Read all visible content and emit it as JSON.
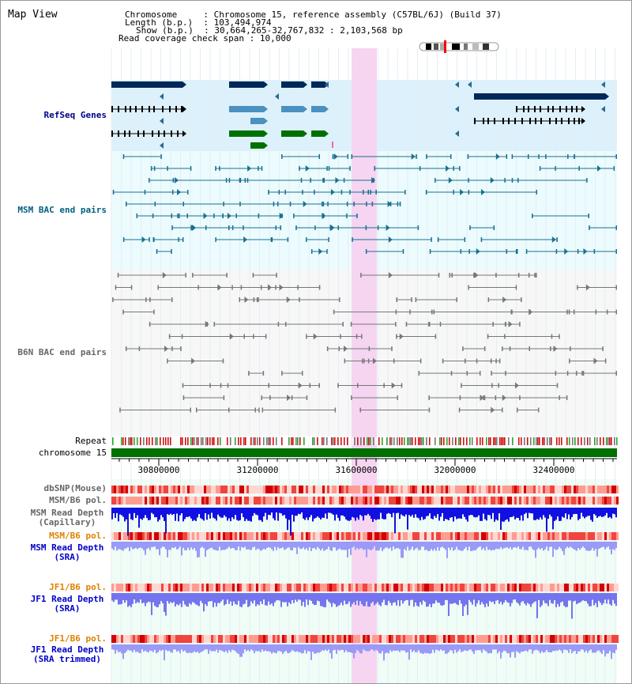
{
  "page": {
    "title": "Map View"
  },
  "header": {
    "lines": [
      {
        "key": "Chromosome",
        "sep": " : ",
        "value": "Chromosome 15, reference assembly (C57BL/6J) (Build 37)"
      },
      {
        "key": "Length (b.p.)",
        "sep": " : ",
        "value": "103,494,974"
      },
      {
        "key": "Show (b.p.)",
        "sep": " : ",
        "value": "30,664,265-32,767,832 : 2,103,568 bp"
      },
      {
        "key": "Read coverage check span",
        "sep": " : ",
        "value": "10,000"
      }
    ]
  },
  "tracks": {
    "refseq": "RefSeq Genes",
    "msm_bac": "MSM BAC end pairs",
    "b6n_bac": "B6N BAC end pairs",
    "repeat": "Repeat",
    "chromosome": "chromosome 15",
    "dbsnp": "dbSNP(Mouse)",
    "msm_b6_pol": "MSM/B6 pol.",
    "msm_depth_cap_1": "MSM Read Depth",
    "msm_depth_cap_2": "(Capillary)",
    "msm_b6_pol_sra": "MSM/B6 pol.",
    "msm_depth_sra_1": "MSM Read Depth",
    "msm_depth_sra_2": "(SRA)",
    "jf1_b6_pol": "JF1/B6 pol.",
    "jf1_depth_1": "JF1 Read Depth",
    "jf1_depth_2": "(SRA)",
    "jf1_b6_pol_trim": "JF1/B6 pol.",
    "jf1_trim_1": "JF1 Read Depth",
    "jf1_trim_2": "(SRA trimmed)"
  },
  "axis": {
    "ticks": [
      "30800000",
      "31200000",
      "31600000",
      "32000000",
      "32400000"
    ]
  },
  "colors": {
    "refseq_label": "#00008b",
    "msm_label": "#006080",
    "b6n_label": "#666666",
    "pol_label": "#e08000",
    "depth_label": "#0000c8",
    "highlight": "#f6d3f0",
    "chromosome_bar": "#007000"
  }
}
